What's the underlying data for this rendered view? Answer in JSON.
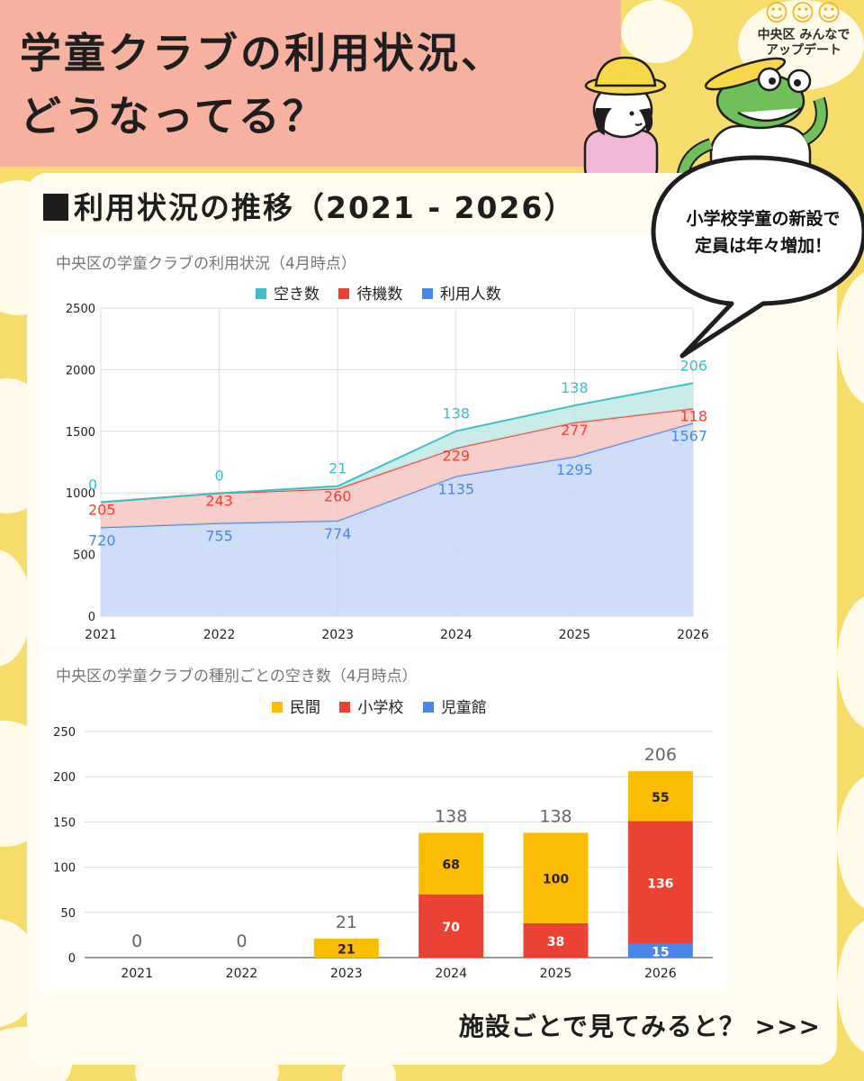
{
  "page": {
    "title_line1": "学童クラブの利用状況、",
    "title_line2": "どうなってる？",
    "section_heading": "利用状況の推移（2021 - 2026）",
    "bubble_line1": "小学校学童の新設で",
    "bubble_line2": "定員は年々増加！",
    "footer_cta": "施設ごとで見てみると？ >>>",
    "logo_text_a": "中央区 みんなで",
    "logo_text_b": "アップデート",
    "bg_color": "#f6dc6a",
    "header_color": "#f7b1a1"
  },
  "chart_data": [
    {
      "type": "area",
      "title": "中央区の学童クラブの利用状況（4月時点）",
      "x": [
        "2021",
        "2022",
        "2023",
        "2024",
        "2025",
        "2026"
      ],
      "stacked": true,
      "ylim": [
        0,
        2500
      ],
      "yticks": [
        0,
        500,
        1000,
        1500,
        2000,
        2500
      ],
      "grid": true,
      "legend": "top",
      "series": [
        {
          "name": "利用人数",
          "values": [
            720,
            755,
            774,
            1135,
            1295,
            1567
          ],
          "color": "#4a86e8",
          "fill": "#c5d8f7"
        },
        {
          "name": "待機数",
          "values": [
            205,
            243,
            260,
            229,
            277,
            118
          ],
          "color": "#ea4335",
          "fill": "#f6c6c1"
        },
        {
          "name": "空き数",
          "values": [
            0,
            0,
            21,
            138,
            138,
            206
          ],
          "color": "#3cbfc6",
          "fill": "#bfe8e6"
        }
      ],
      "legend_order": [
        "空き数",
        "待機数",
        "利用人数"
      ]
    },
    {
      "type": "bar",
      "title": "中央区の学童クラブの種別ごとの空き数（4月時点）",
      "categories": [
        "2021",
        "2022",
        "2023",
        "2024",
        "2025",
        "2026"
      ],
      "stacked": true,
      "ylim": [
        0,
        250
      ],
      "yticks": [
        0,
        50,
        100,
        150,
        200,
        250
      ],
      "grid": true,
      "legend": "top",
      "series": [
        {
          "name": "児童館",
          "values": [
            0,
            0,
            0,
            0,
            0,
            15
          ],
          "color": "#4a86e8"
        },
        {
          "name": "小学校",
          "values": [
            0,
            0,
            0,
            70,
            38,
            136
          ],
          "color": "#ea4335"
        },
        {
          "name": "民間",
          "values": [
            0,
            0,
            21,
            68,
            100,
            55
          ],
          "color": "#fbbc04"
        }
      ],
      "totals": [
        0,
        0,
        21,
        138,
        138,
        206
      ],
      "legend_order": [
        "民間",
        "小学校",
        "児童館"
      ]
    }
  ]
}
